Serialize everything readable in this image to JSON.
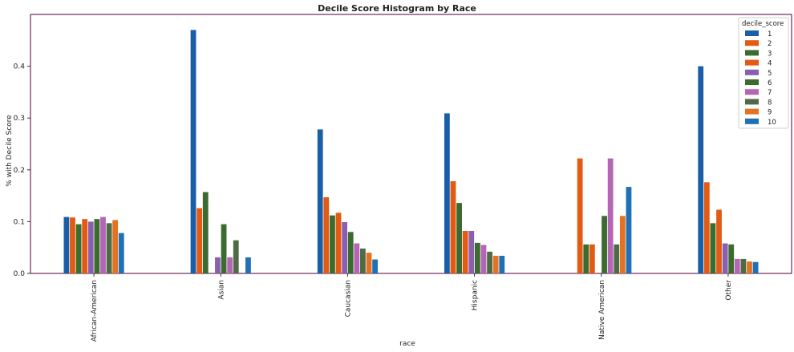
{
  "chart_data": {
    "type": "bar",
    "title": "Decile Score Histogram by Race",
    "xlabel": "race",
    "ylabel": "% with Decile Score",
    "ylim": [
      0,
      0.5
    ],
    "yticks": [
      "0.0",
      "0.1",
      "0.2",
      "0.3",
      "0.4"
    ],
    "grid": false,
    "legend_title": "decile_score",
    "legend_position": "top-right",
    "categories": [
      "African-American",
      "Asian",
      "Caucasian",
      "Hispanic",
      "Native American",
      "Other"
    ],
    "series": [
      {
        "name": "1",
        "color": "#1a5ea8",
        "values": [
          0.109,
          0.47,
          0.278,
          0.309,
          0.0,
          0.4
        ]
      },
      {
        "name": "2",
        "color": "#e35a12",
        "values": [
          0.108,
          0.126,
          0.147,
          0.178,
          0.222,
          0.176
        ]
      },
      {
        "name": "3",
        "color": "#3b6b2e",
        "values": [
          0.095,
          0.157,
          0.112,
          0.136,
          0.056,
          0.097
        ]
      },
      {
        "name": "4",
        "color": "#e35a12",
        "values": [
          0.105,
          0.0,
          0.117,
          0.082,
          0.056,
          0.123
        ]
      },
      {
        "name": "5",
        "color": "#8a5fb0",
        "values": [
          0.1,
          0.031,
          0.099,
          0.082,
          0.0,
          0.058
        ]
      },
      {
        "name": "6",
        "color": "#3b6b2e",
        "values": [
          0.105,
          0.095,
          0.08,
          0.059,
          0.111,
          0.056
        ]
      },
      {
        "name": "7",
        "color": "#b565b5",
        "values": [
          0.109,
          0.031,
          0.058,
          0.055,
          0.222,
          0.028
        ]
      },
      {
        "name": "8",
        "color": "#4f6b46",
        "values": [
          0.097,
          0.064,
          0.048,
          0.042,
          0.056,
          0.028
        ]
      },
      {
        "name": "9",
        "color": "#e37322",
        "values": [
          0.103,
          0.0,
          0.04,
          0.034,
          0.111,
          0.023
        ]
      },
      {
        "name": "10",
        "color": "#1f70b5",
        "values": [
          0.078,
          0.031,
          0.027,
          0.034,
          0.167,
          0.022
        ]
      }
    ]
  }
}
